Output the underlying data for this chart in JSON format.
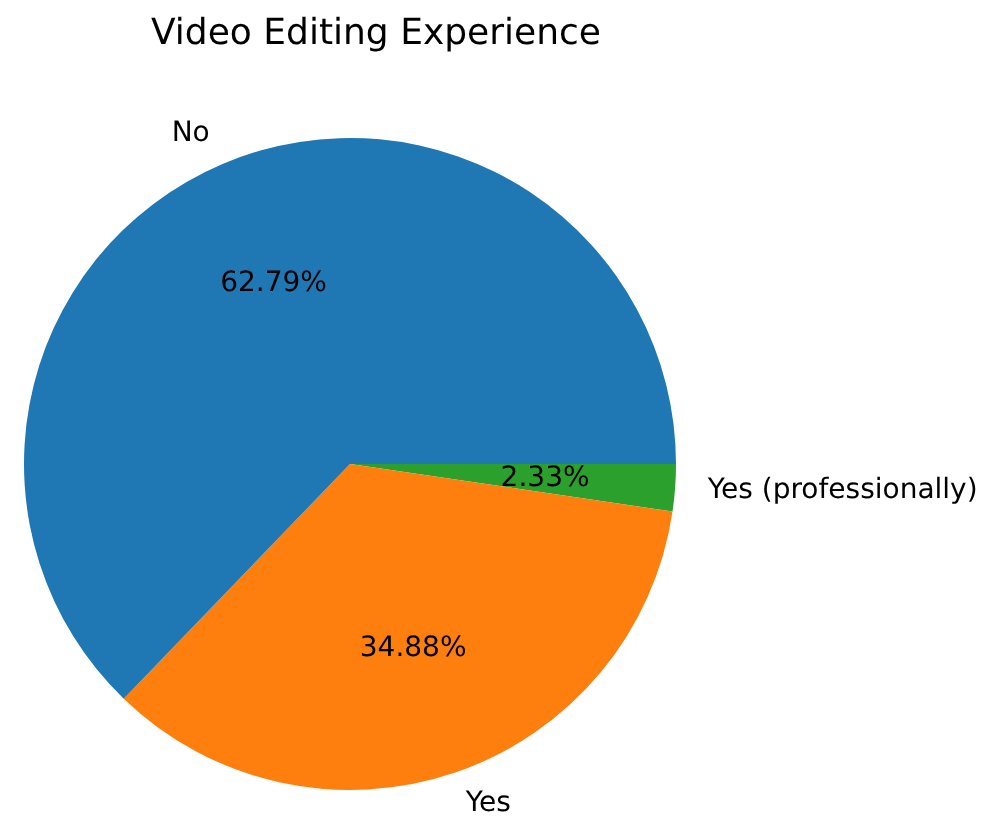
{
  "chart_data": {
    "type": "pie",
    "title": "Video Editing Experience",
    "categories": [
      "No",
      "Yes",
      "Yes (professionally)"
    ],
    "values": [
      62.79,
      34.88,
      2.33
    ],
    "colors": [
      "#1f77b4",
      "#ff7f0e",
      "#2ca02c"
    ],
    "value_labels": [
      "62.79%",
      "34.88%",
      "2.33%"
    ],
    "legend": false
  }
}
